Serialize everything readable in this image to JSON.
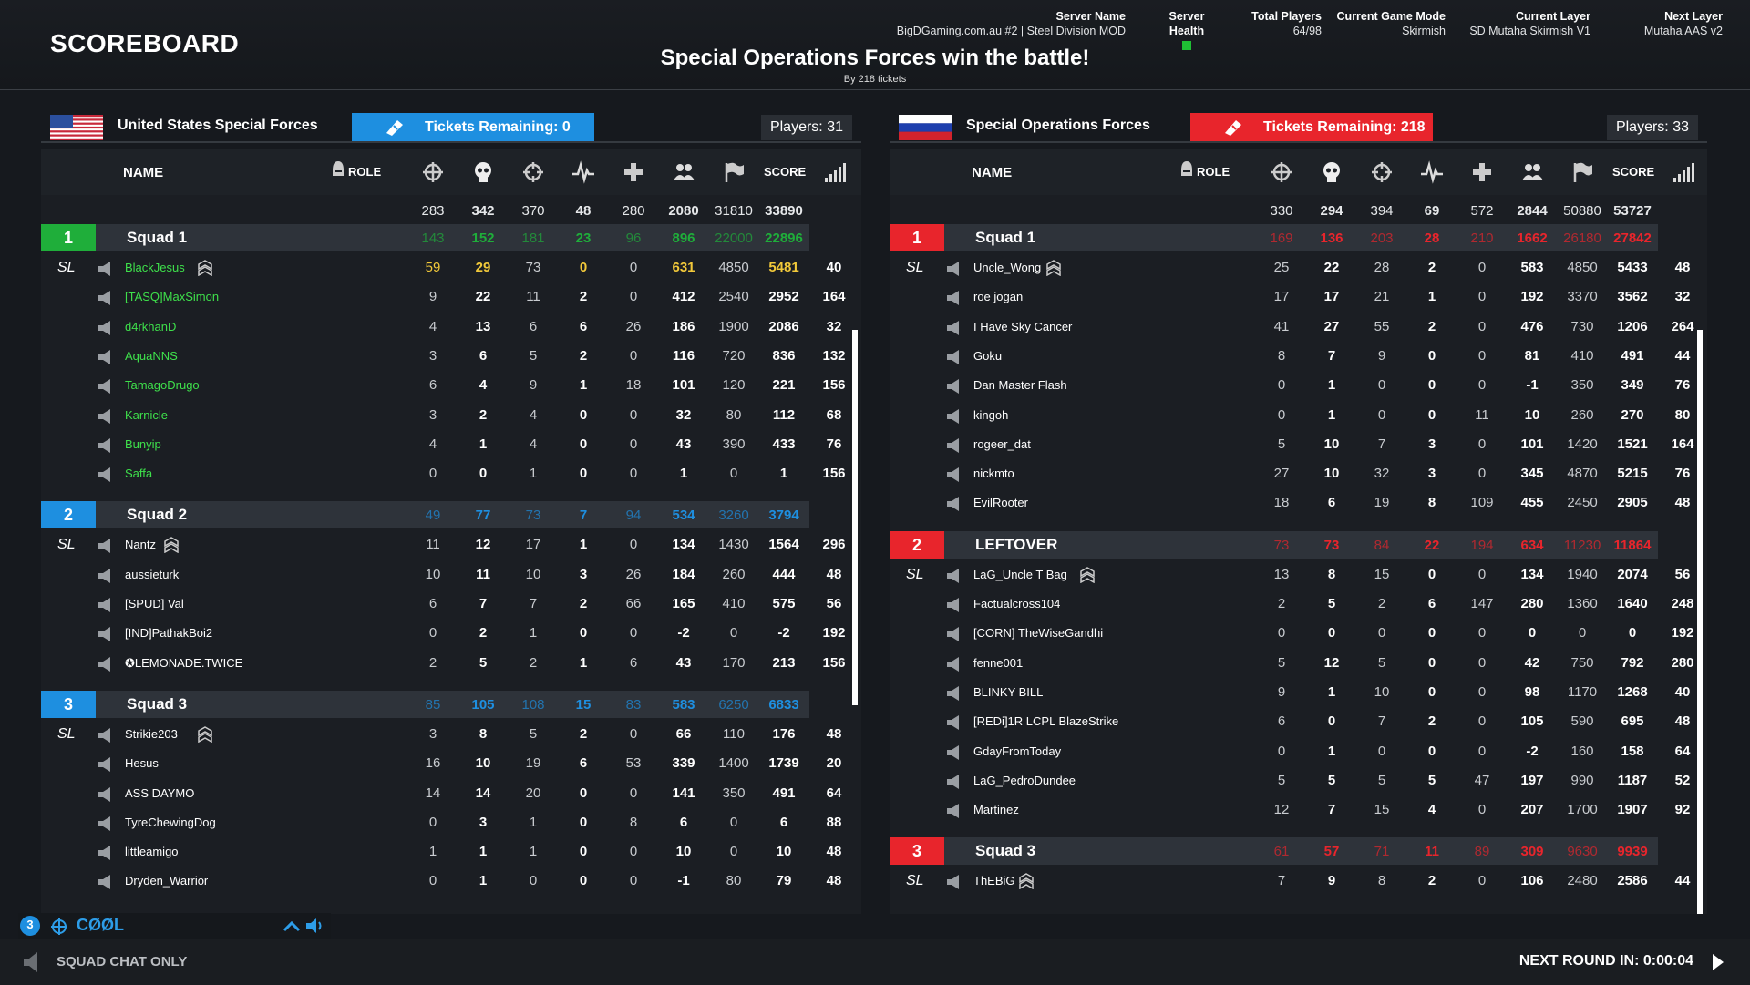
{
  "title": "SCOREBOARD",
  "server": {
    "name_label": "Server Name",
    "name": "BigDGaming.com.au #2 | Steel Division MOD",
    "health_label": "Server Health",
    "players_label": "Total Players",
    "players": "64/98",
    "mode_label": "Current Game Mode",
    "mode": "Skirmish",
    "layer_label": "Current Layer",
    "layer": "SD Mutaha Skirmish V1",
    "next_label": "Next Layer",
    "next": "Mutaha AAS v2"
  },
  "result": {
    "message": "Special Operations Forces win the battle!",
    "sub": "By 218 tickets"
  },
  "columns": {
    "name": "NAME",
    "role": "ROLE",
    "score": "SCORE"
  },
  "teams": [
    {
      "name": "United States Special Forces",
      "tickets": "Tickets Remaining: 0",
      "players": "Players: 31",
      "accent": "#1e8fe0",
      "totals": [
        "283",
        "342",
        "370",
        "48",
        "280",
        "2080",
        "31810",
        "33890"
      ],
      "squads": [
        {
          "num": "1",
          "name": "Squad 1",
          "color": "#1fae3a",
          "stats": [
            "143",
            "152",
            "181",
            "23",
            "96",
            "896",
            "22000",
            "22896"
          ],
          "members": [
            {
              "sl": "SL",
              "name": "BlackJesus",
              "leader": true,
              "green": true,
              "stats": [
                "59",
                "29",
                "73",
                "0",
                "0",
                "631",
                "4850",
                "5481",
                "40"
              ]
            },
            {
              "name": "[TASQ]MaxSimon",
              "green": true,
              "stats": [
                "9",
                "22",
                "11",
                "2",
                "0",
                "412",
                "2540",
                "2952",
                "164"
              ]
            },
            {
              "name": "d4rkhanD",
              "green": true,
              "stats": [
                "4",
                "13",
                "6",
                "6",
                "26",
                "186",
                "1900",
                "2086",
                "32"
              ]
            },
            {
              "name": "AquaNNS",
              "green": true,
              "stats": [
                "3",
                "6",
                "5",
                "2",
                "0",
                "116",
                "720",
                "836",
                "132"
              ]
            },
            {
              "name": "TamagoDrugo",
              "green": true,
              "stats": [
                "6",
                "4",
                "9",
                "1",
                "18",
                "101",
                "120",
                "221",
                "156"
              ]
            },
            {
              "name": "Karnicle",
              "green": true,
              "stats": [
                "3",
                "2",
                "4",
                "0",
                "0",
                "32",
                "80",
                "112",
                "68"
              ]
            },
            {
              "name": "Bunyip",
              "green": true,
              "stats": [
                "4",
                "1",
                "4",
                "0",
                "0",
                "43",
                "390",
                "433",
                "76"
              ]
            },
            {
              "name": "Saffa",
              "green": true,
              "stats": [
                "0",
                "0",
                "1",
                "0",
                "0",
                "1",
                "0",
                "1",
                "156"
              ]
            }
          ]
        },
        {
          "num": "2",
          "name": "Squad 2",
          "color": "#1e8fe0",
          "stats": [
            "49",
            "77",
            "73",
            "7",
            "94",
            "534",
            "3260",
            "3794"
          ],
          "members": [
            {
              "sl": "SL",
              "name": "Nantz",
              "leader": true,
              "stats": [
                "11",
                "12",
                "17",
                "1",
                "0",
                "134",
                "1430",
                "1564",
                "296"
              ]
            },
            {
              "name": "aussieturk",
              "stats": [
                "10",
                "11",
                "10",
                "3",
                "26",
                "184",
                "260",
                "444",
                "48"
              ]
            },
            {
              "name": "[SPUD] Val",
              "stats": [
                "6",
                "7",
                "7",
                "2",
                "66",
                "165",
                "410",
                "575",
                "56"
              ]
            },
            {
              "name": "[IND]PathakBoi2",
              "stats": [
                "0",
                "2",
                "1",
                "0",
                "0",
                "-2",
                "0",
                "-2",
                "192"
              ]
            },
            {
              "name": "✪LEMONADE.TWICE",
              "stats": [
                "2",
                "5",
                "2",
                "1",
                "6",
                "43",
                "170",
                "213",
                "156"
              ]
            }
          ]
        },
        {
          "num": "3",
          "name": "Squad 3",
          "color": "#1e8fe0",
          "stats": [
            "85",
            "105",
            "108",
            "15",
            "83",
            "583",
            "6250",
            "6833"
          ],
          "members": [
            {
              "sl": "SL",
              "name": "Strikie203",
              "leader": true,
              "stats": [
                "3",
                "8",
                "5",
                "2",
                "0",
                "66",
                "110",
                "176",
                "48"
              ]
            },
            {
              "name": "Hesus",
              "stats": [
                "16",
                "10",
                "19",
                "6",
                "53",
                "339",
                "1400",
                "1739",
                "20"
              ]
            },
            {
              "name": "ASS DAYMO",
              "stats": [
                "14",
                "14",
                "20",
                "0",
                "0",
                "141",
                "350",
                "491",
                "64"
              ]
            },
            {
              "name": "TyreChewingDog",
              "stats": [
                "0",
                "3",
                "1",
                "0",
                "8",
                "6",
                "0",
                "6",
                "88"
              ]
            },
            {
              "name": "littleamigo",
              "stats": [
                "1",
                "1",
                "1",
                "0",
                "0",
                "10",
                "0",
                "10",
                "48"
              ]
            },
            {
              "name": "Dryden_Warrior",
              "stats": [
                "0",
                "1",
                "0",
                "0",
                "0",
                "-1",
                "80",
                "79",
                "48"
              ]
            }
          ]
        }
      ]
    },
    {
      "name": "Special Operations Forces",
      "tickets": "Tickets Remaining: 218",
      "players": "Players: 33",
      "accent": "#e8252c",
      "totals": [
        "330",
        "294",
        "394",
        "69",
        "572",
        "2844",
        "50880",
        "53727"
      ],
      "squads": [
        {
          "num": "1",
          "name": "Squad 1",
          "color": "#e8252c",
          "stats": [
            "169",
            "136",
            "203",
            "28",
            "210",
            "1662",
            "26180",
            "27842"
          ],
          "members": [
            {
              "sl": "SL",
              "name": "Uncle_Wong",
              "leader": true,
              "stats": [
                "25",
                "22",
                "28",
                "2",
                "0",
                "583",
                "4850",
                "5433",
                "48"
              ]
            },
            {
              "name": "roe jogan",
              "stats": [
                "17",
                "17",
                "21",
                "1",
                "0",
                "192",
                "3370",
                "3562",
                "32"
              ]
            },
            {
              "name": "I Have Sky Cancer",
              "stats": [
                "41",
                "27",
                "55",
                "2",
                "0",
                "476",
                "730",
                "1206",
                "264"
              ]
            },
            {
              "name": "Goku",
              "stats": [
                "8",
                "7",
                "9",
                "0",
                "0",
                "81",
                "410",
                "491",
                "44"
              ]
            },
            {
              "name": "Dan Master Flash",
              "stats": [
                "0",
                "1",
                "0",
                "0",
                "0",
                "-1",
                "350",
                "349",
                "76"
              ]
            },
            {
              "name": "kingoh",
              "stats": [
                "0",
                "1",
                "0",
                "0",
                "11",
                "10",
                "260",
                "270",
                "80"
              ]
            },
            {
              "name": "rogeer_dat",
              "stats": [
                "5",
                "10",
                "7",
                "3",
                "0",
                "101",
                "1420",
                "1521",
                "164"
              ]
            },
            {
              "name": "nickmto",
              "stats": [
                "27",
                "10",
                "32",
                "3",
                "0",
                "345",
                "4870",
                "5215",
                "76"
              ]
            },
            {
              "name": "EvilRooter",
              "stats": [
                "18",
                "6",
                "19",
                "8",
                "109",
                "455",
                "2450",
                "2905",
                "48"
              ]
            }
          ]
        },
        {
          "num": "2",
          "name": "LEFTOVER",
          "color": "#e8252c",
          "stats": [
            "73",
            "73",
            "84",
            "22",
            "194",
            "634",
            "11230",
            "11864"
          ],
          "members": [
            {
              "sl": "SL",
              "name": "LaG_Uncle T Bag",
              "leader": true,
              "stats": [
                "13",
                "8",
                "15",
                "0",
                "0",
                "134",
                "1940",
                "2074",
                "56"
              ]
            },
            {
              "name": "Factualcross104",
              "stats": [
                "2",
                "5",
                "2",
                "6",
                "147",
                "280",
                "1360",
                "1640",
                "248"
              ]
            },
            {
              "name": "[CORN] TheWiseGandhi",
              "stats": [
                "0",
                "0",
                "0",
                "0",
                "0",
                "0",
                "0",
                "0",
                "192"
              ]
            },
            {
              "name": "fenne001",
              "stats": [
                "5",
                "12",
                "5",
                "0",
                "0",
                "42",
                "750",
                "792",
                "280"
              ]
            },
            {
              "name": "BLINKY BILL",
              "stats": [
                "9",
                "1",
                "10",
                "0",
                "0",
                "98",
                "1170",
                "1268",
                "40"
              ]
            },
            {
              "name": "[REDi]1R LCPL BlazeStrike",
              "stats": [
                "6",
                "0",
                "7",
                "2",
                "0",
                "105",
                "590",
                "695",
                "48"
              ]
            },
            {
              "name": "GdayFromToday",
              "stats": [
                "0",
                "1",
                "0",
                "0",
                "0",
                "-2",
                "160",
                "158",
                "64"
              ]
            },
            {
              "name": "LaG_PedroDundee",
              "stats": [
                "5",
                "5",
                "5",
                "5",
                "47",
                "197",
                "990",
                "1187",
                "52"
              ]
            },
            {
              "name": "Martinez",
              "stats": [
                "12",
                "7",
                "15",
                "4",
                "0",
                "207",
                "1700",
                "1907",
                "92"
              ]
            }
          ]
        },
        {
          "num": "3",
          "name": "Squad 3",
          "color": "#e8252c",
          "stats": [
            "61",
            "57",
            "71",
            "11",
            "89",
            "309",
            "9630",
            "9939"
          ],
          "members": [
            {
              "sl": "SL",
              "name": "ThEBiG",
              "leader": true,
              "stats": [
                "7",
                "9",
                "8",
                "2",
                "0",
                "106",
                "2480",
                "2586",
                "44"
              ]
            }
          ]
        }
      ]
    }
  ],
  "voice": {
    "num": "3",
    "name": "CØØL"
  },
  "footer": {
    "chat": "SQUAD CHAT ONLY",
    "next_round": "NEXT ROUND IN: 0:00:04"
  }
}
